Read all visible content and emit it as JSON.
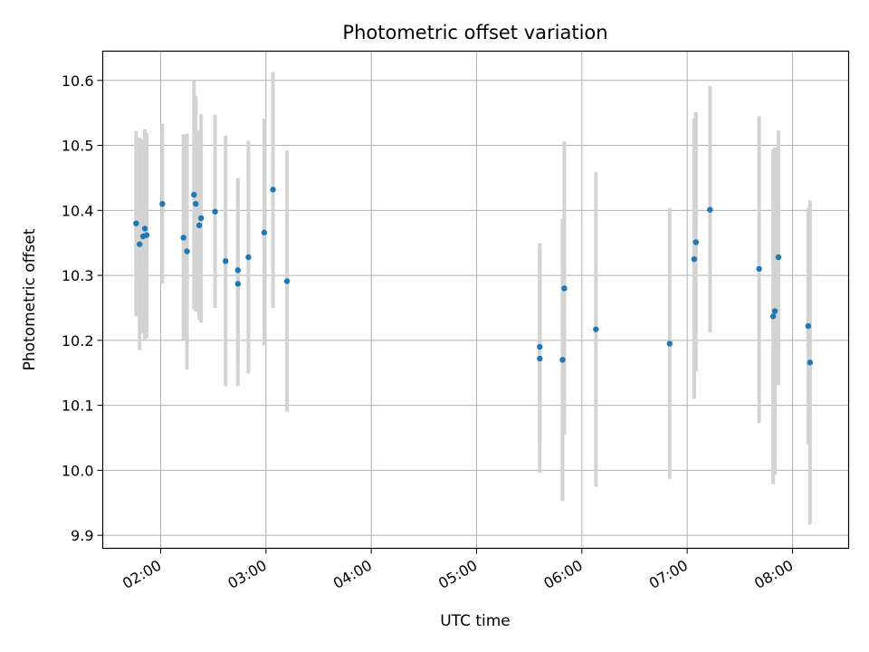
{
  "chart_data": {
    "type": "scatter",
    "title": "Photometric offset variation",
    "xlabel": "UTC time",
    "ylabel": "Photometric offset",
    "xlim": [
      "01:27",
      "08:32"
    ],
    "ylim": [
      9.88,
      10.645
    ],
    "x_ticks": [
      "02:00",
      "03:00",
      "04:00",
      "05:00",
      "06:00",
      "07:00",
      "08:00"
    ],
    "y_ticks": [
      9.9,
      10.0,
      10.1,
      10.2,
      10.3,
      10.4,
      10.5,
      10.6
    ],
    "grid": true,
    "colors": {
      "points": "#1f77b4",
      "error_bars": "#d3d3d3",
      "grid": "#b0b0b0"
    },
    "points": [
      {
        "x": "01:46",
        "y": 10.38,
        "low": 10.237,
        "high": 10.522
      },
      {
        "x": "01:48",
        "y": 10.348,
        "low": 10.185,
        "high": 10.512
      },
      {
        "x": "01:50",
        "y": 10.36,
        "low": 10.211,
        "high": 10.509
      },
      {
        "x": "01:51",
        "y": 10.372,
        "low": 10.2,
        "high": 10.525
      },
      {
        "x": "01:52",
        "y": 10.362,
        "low": 10.204,
        "high": 10.519
      },
      {
        "x": "02:01",
        "y": 10.41,
        "low": 10.287,
        "high": 10.533
      },
      {
        "x": "02:13",
        "y": 10.358,
        "low": 10.2,
        "high": 10.517
      },
      {
        "x": "02:15",
        "y": 10.337,
        "low": 10.155,
        "high": 10.518
      },
      {
        "x": "02:19",
        "y": 10.424,
        "low": 10.248,
        "high": 10.6
      },
      {
        "x": "02:20",
        "y": 10.41,
        "low": 10.244,
        "high": 10.576
      },
      {
        "x": "02:22",
        "y": 10.377,
        "low": 10.232,
        "high": 10.523
      },
      {
        "x": "02:23",
        "y": 10.388,
        "low": 10.227,
        "high": 10.548
      },
      {
        "x": "02:31",
        "y": 10.398,
        "low": 10.25,
        "high": 10.547
      },
      {
        "x": "02:37",
        "y": 10.322,
        "low": 10.129,
        "high": 10.515
      },
      {
        "x": "02:44",
        "y": 10.308,
        "low": 10.166,
        "high": 10.45
      },
      {
        "x": "02:44",
        "y": 10.287,
        "low": 10.13,
        "high": 10.445
      },
      {
        "x": "02:50",
        "y": 10.328,
        "low": 10.149,
        "high": 10.507
      },
      {
        "x": "02:59",
        "y": 10.366,
        "low": 10.192,
        "high": 10.541
      },
      {
        "x": "03:04",
        "y": 10.432,
        "low": 10.25,
        "high": 10.613
      },
      {
        "x": "03:12",
        "y": 10.291,
        "low": 10.09,
        "high": 10.492
      },
      {
        "x": "05:36",
        "y": 10.19,
        "low": 10.043,
        "high": 10.338
      },
      {
        "x": "05:36",
        "y": 10.172,
        "low": 9.996,
        "high": 10.349
      },
      {
        "x": "05:49",
        "y": 10.17,
        "low": 9.953,
        "high": 10.387
      },
      {
        "x": "05:50",
        "y": 10.28,
        "low": 10.055,
        "high": 10.506
      },
      {
        "x": "06:08",
        "y": 10.217,
        "low": 9.975,
        "high": 10.459
      },
      {
        "x": "06:50",
        "y": 10.195,
        "low": 9.987,
        "high": 10.404
      },
      {
        "x": "07:04",
        "y": 10.325,
        "low": 10.11,
        "high": 10.541
      },
      {
        "x": "07:05",
        "y": 10.351,
        "low": 10.152,
        "high": 10.551
      },
      {
        "x": "07:13",
        "y": 10.401,
        "low": 10.212,
        "high": 10.591
      },
      {
        "x": "07:41",
        "y": 10.31,
        "low": 10.073,
        "high": 10.545
      },
      {
        "x": "07:49",
        "y": 10.237,
        "low": 9.979,
        "high": 10.494
      },
      {
        "x": "07:50",
        "y": 10.245,
        "low": 9.993,
        "high": 10.497
      },
      {
        "x": "07:52",
        "y": 10.328,
        "low": 10.131,
        "high": 10.523
      },
      {
        "x": "08:09",
        "y": 10.222,
        "low": 10.04,
        "high": 10.404
      },
      {
        "x": "08:10",
        "y": 10.166,
        "low": 9.917,
        "high": 10.415
      }
    ]
  }
}
